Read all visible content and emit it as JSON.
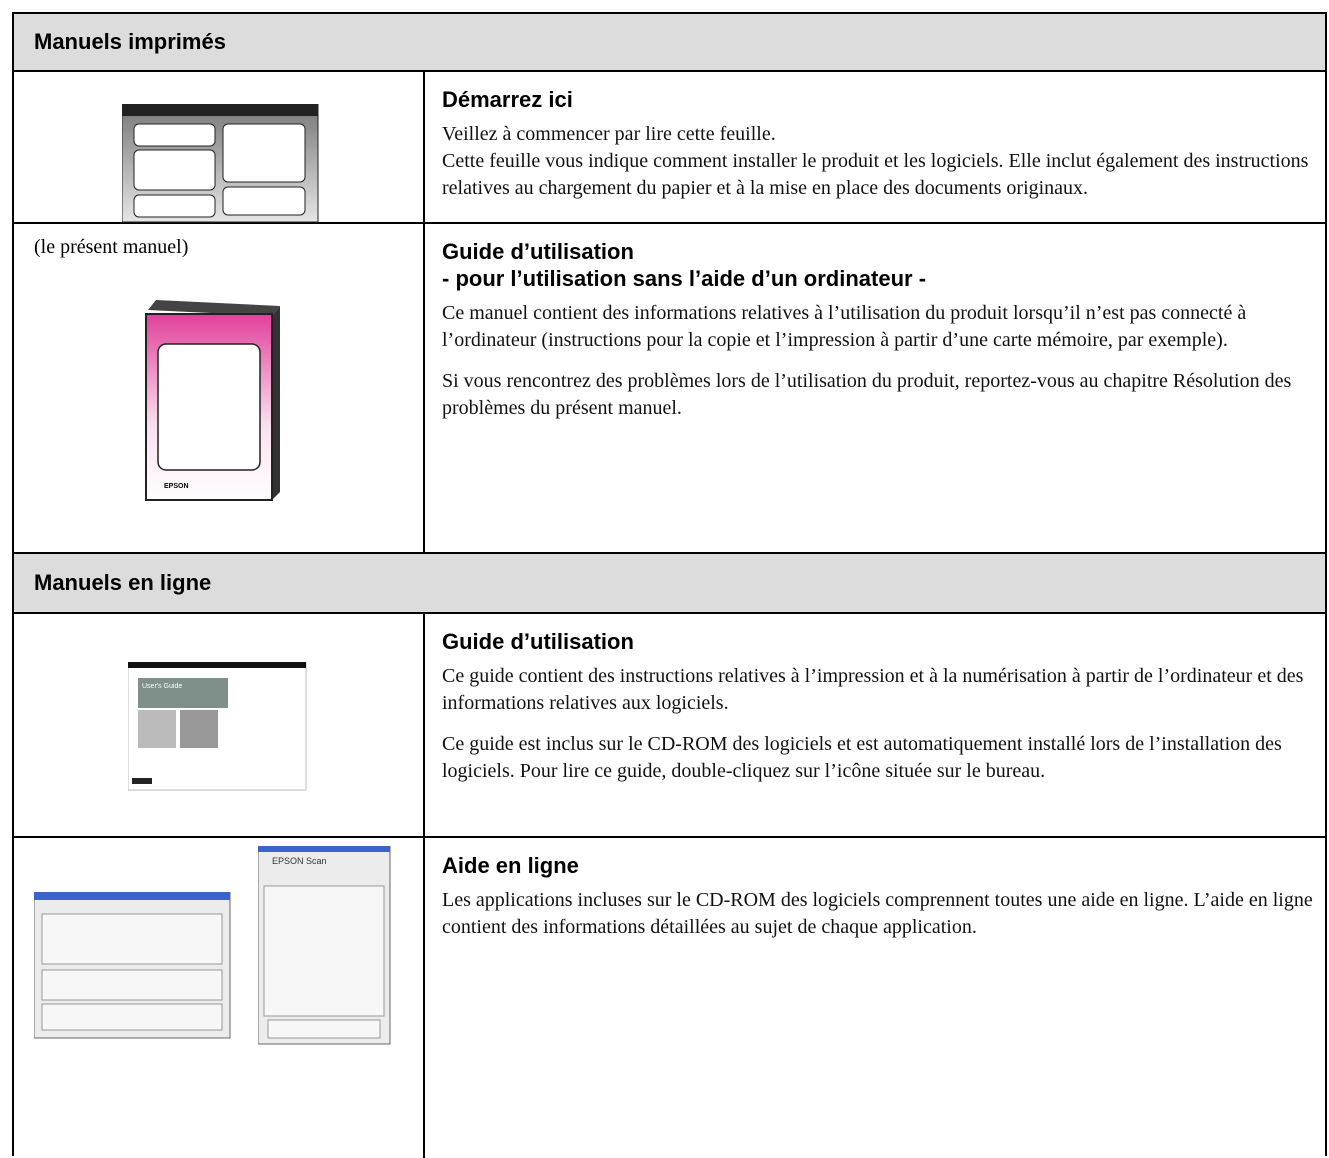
{
  "sections": [
    {
      "title": "Manuels imprimés",
      "rows": [
        {
          "heading": [
            "Démarrez ici"
          ],
          "paragraphs": [
            "Veillez à commencer par lire cette feuille.",
            "Cette feuille vous indique comment installer le produit et les logiciels. Elle inclut également des instructions relatives au chargement du papier et à la mise en place des documents originaux."
          ]
        },
        {
          "note": "(le présent manuel)",
          "image_text": "EPSON",
          "heading": [
            "Guide d’utilisation",
            "- pour l’utilisation sans l’aide d’un ordinateur -"
          ],
          "paragraphs": [
            "Ce manuel contient des informations relatives à l’utilisation du produit lorsqu’il n’est pas connecté à l’ordinateur (instructions pour la copie et l’impression à partir d’une carte mémoire, par exemple).",
            "Si vous rencontrez des problèmes lors de l’utilisation du produit, reportez-vous au chapitre Résolution des problèmes du présent manuel."
          ]
        }
      ]
    },
    {
      "title": "Manuels en ligne",
      "rows": [
        {
          "image_text": "User's Guide",
          "heading": [
            "Guide d’utilisation"
          ],
          "paragraphs": [
            "Ce guide contient des instructions relatives à l’impression et à la numérisation à partir de l’ordinateur et des informations relatives aux logiciels.",
            "Ce guide est inclus sur le CD-ROM des logiciels et est automatiquement installé lors de l’installation des logiciels. Pour lire ce guide, double-cliquez sur l’icône située sur le bureau."
          ]
        },
        {
          "image_text": "EPSON Scan",
          "heading": [
            "Aide en ligne"
          ],
          "paragraphs": [
            "Les applications incluses sur le CD-ROM des logiciels comprennent toutes une aide en ligne. L’aide en ligne contient des informations détaillées au sujet de chaque application."
          ]
        }
      ]
    }
  ]
}
